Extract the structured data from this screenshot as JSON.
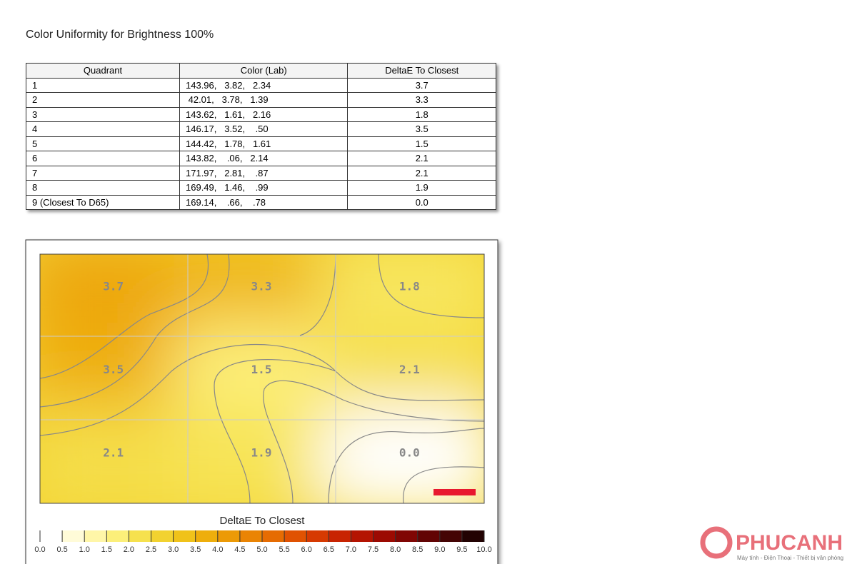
{
  "title": "Color Uniformity for Brightness 100%",
  "table": {
    "headers": [
      "Quadrant",
      "Color (Lab)",
      "DeltaE To Closest"
    ],
    "rows": [
      [
        "1",
        "143.96,   3.82,   2.34",
        "3.7"
      ],
      [
        "2",
        " 42.01,   3.78,   1.39",
        "3.3"
      ],
      [
        "3",
        "143.62,   1.61,   2.16",
        "1.8"
      ],
      [
        "4",
        "146.17,   3.52,    .50",
        "3.5"
      ],
      [
        "5",
        "144.42,   1.78,   1.61",
        "1.5"
      ],
      [
        "6",
        "143.82,    .06,   2.14",
        "2.1"
      ],
      [
        "7",
        "171.97,   2.81,    .87",
        "2.1"
      ],
      [
        "8",
        "169.49,   1.46,    .99",
        "1.9"
      ],
      [
        "9 (Closest To D65)",
        "169.14,    .66,    .78",
        "0.0"
      ]
    ]
  },
  "legend": {
    "title": "DeltaE To Closest",
    "ticks": [
      "0.0",
      "0.5",
      "1.0",
      "1.5",
      "2.0",
      "2.5",
      "3.0",
      "3.5",
      "4.0",
      "4.5",
      "5.0",
      "5.5",
      "6.0",
      "6.5",
      "7.0",
      "7.5",
      "8.0",
      "8.5",
      "9.0",
      "9.5",
      "10.0"
    ]
  },
  "watermark": {
    "brand": "PHUCANH",
    "tagline": "Máy tính - Điện Thoại - Thiết bị văn phòng"
  }
}
